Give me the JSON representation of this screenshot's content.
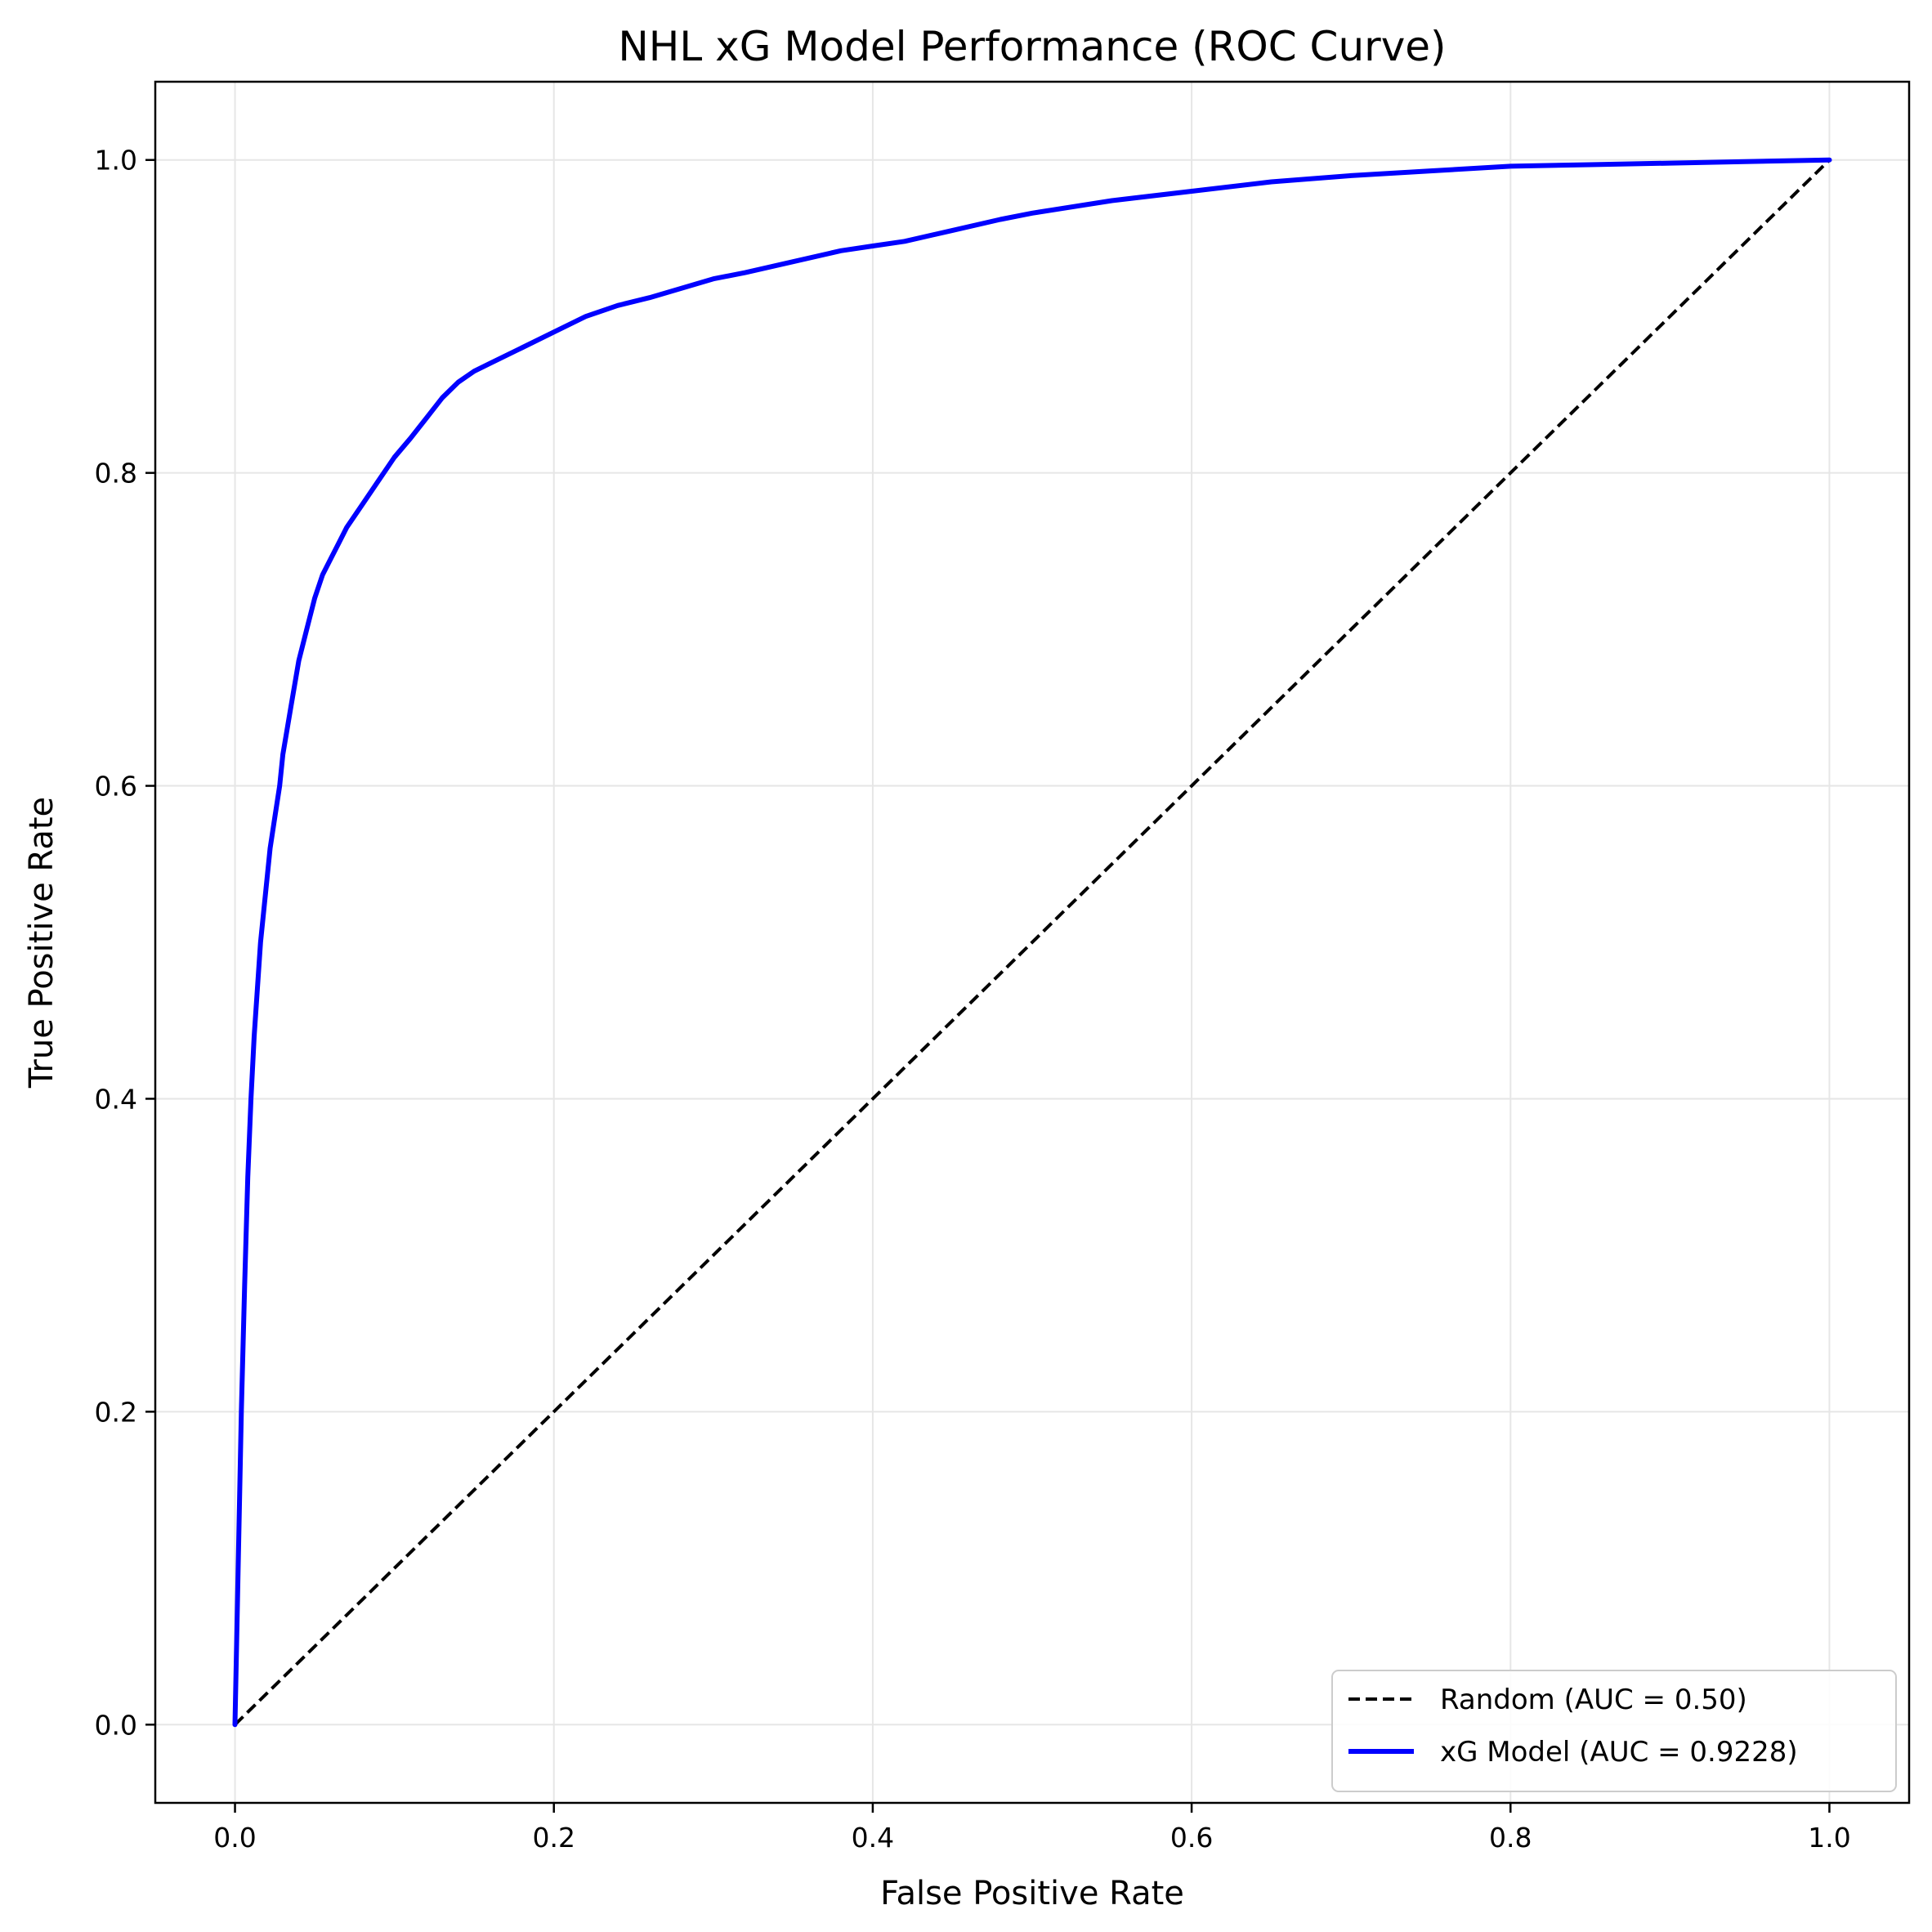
{
  "chart_data": {
    "type": "line",
    "title": "NHL xG Model Performance (ROC Curve)",
    "xlabel": "False Positive Rate",
    "ylabel": "True Positive Rate",
    "xlim": [
      -0.05,
      1.05
    ],
    "ylim": [
      -0.05,
      1.05
    ],
    "xticks": [
      0.0,
      0.2,
      0.4,
      0.6,
      0.8,
      1.0
    ],
    "xtick_labels": [
      "0.0",
      "0.2",
      "0.4",
      "0.6",
      "0.8",
      "1.0"
    ],
    "yticks": [
      0.0,
      0.2,
      0.4,
      0.6,
      0.8,
      1.0
    ],
    "ytick_labels": [
      "0.0",
      "0.2",
      "0.4",
      "0.6",
      "0.8",
      "1.0"
    ],
    "grid": true,
    "legend_position": "bottom-right",
    "series": [
      {
        "name": "Random (AUC = 0.50)",
        "color": "#000000",
        "dash": "dashed",
        "x": [
          0.0,
          1.0
        ],
        "y": [
          0.0,
          1.0
        ]
      },
      {
        "name": "xG Model (AUC = 0.9228)",
        "color": "#0000ff",
        "dash": "solid",
        "x": [
          0.0,
          0.002,
          0.004,
          0.006,
          0.008,
          0.01,
          0.012,
          0.014,
          0.016,
          0.018,
          0.02,
          0.022,
          0.025,
          0.028,
          0.03,
          0.035,
          0.04,
          0.045,
          0.05,
          0.055,
          0.06,
          0.065,
          0.07,
          0.08,
          0.09,
          0.1,
          0.11,
          0.12,
          0.13,
          0.14,
          0.15,
          0.16,
          0.18,
          0.2,
          0.22,
          0.24,
          0.26,
          0.28,
          0.3,
          0.32,
          0.35,
          0.38,
          0.4,
          0.42,
          0.45,
          0.48,
          0.5,
          0.55,
          0.6,
          0.65,
          0.7,
          0.75,
          0.8,
          0.85,
          0.9,
          0.95,
          1.0
        ],
        "y": [
          0.0,
          0.1,
          0.2,
          0.28,
          0.35,
          0.4,
          0.44,
          0.47,
          0.5,
          0.52,
          0.54,
          0.56,
          0.58,
          0.6,
          0.62,
          0.65,
          0.68,
          0.7,
          0.72,
          0.735,
          0.745,
          0.755,
          0.765,
          0.78,
          0.795,
          0.81,
          0.822,
          0.835,
          0.848,
          0.858,
          0.865,
          0.87,
          0.88,
          0.89,
          0.9,
          0.907,
          0.912,
          0.918,
          0.924,
          0.928,
          0.935,
          0.942,
          0.945,
          0.948,
          0.955,
          0.962,
          0.966,
          0.974,
          0.98,
          0.986,
          0.99,
          0.993,
          0.996,
          0.997,
          0.998,
          0.999,
          1.0
        ]
      }
    ]
  }
}
